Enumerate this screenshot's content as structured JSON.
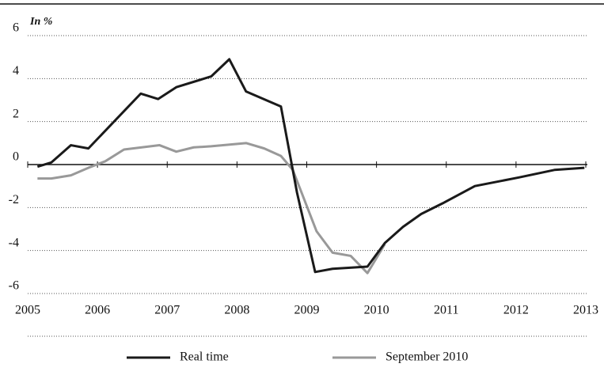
{
  "chart_data": {
    "type": "line",
    "y_label": "In %",
    "xlim": [
      2005,
      2013
    ],
    "xticks": [
      2005,
      2006,
      2007,
      2008,
      2009,
      2010,
      2011,
      2012,
      2013
    ],
    "ylim": [
      -6,
      6
    ],
    "yticks": [
      -6,
      -4,
      -2,
      0,
      2,
      4,
      6
    ],
    "grid": true,
    "series": [
      {
        "name": "Real time",
        "color": "#1a1a1a",
        "x": [
          2005.14,
          2005.34,
          2005.62,
          2005.87,
          2006.62,
          2006.87,
          2007.13,
          2007.63,
          2007.89,
          2008.13,
          2008.63,
          2008.86,
          2009.12,
          2009.37,
          2009.87,
          2010.12,
          2010.38,
          2010.64,
          2010.95,
          2011.41,
          2012.04,
          2012.55,
          2012.98
        ],
        "values": [
          -0.1,
          0.1,
          0.9,
          0.75,
          3.3,
          3.05,
          3.6,
          4.1,
          4.9,
          3.4,
          2.7,
          -1.3,
          -5.0,
          -4.85,
          -4.75,
          -3.65,
          -2.9,
          -2.3,
          -1.8,
          -1.0,
          -0.6,
          -0.25,
          -0.15
        ]
      },
      {
        "name": "September 2010",
        "color": "#999999",
        "x": [
          2005.14,
          2005.34,
          2005.62,
          2005.87,
          2006.11,
          2006.38,
          2006.89,
          2007.13,
          2007.38,
          2007.63,
          2008.13,
          2008.39,
          2008.63,
          2008.8,
          2009.14,
          2009.37,
          2009.63,
          2009.87,
          2010.12
        ],
        "values": [
          -0.65,
          -0.65,
          -0.5,
          -0.15,
          0.15,
          0.7,
          0.9,
          0.6,
          0.8,
          0.85,
          1.0,
          0.75,
          0.4,
          -0.25,
          -3.1,
          -4.1,
          -4.25,
          -5.05,
          -3.7
        ]
      }
    ]
  }
}
